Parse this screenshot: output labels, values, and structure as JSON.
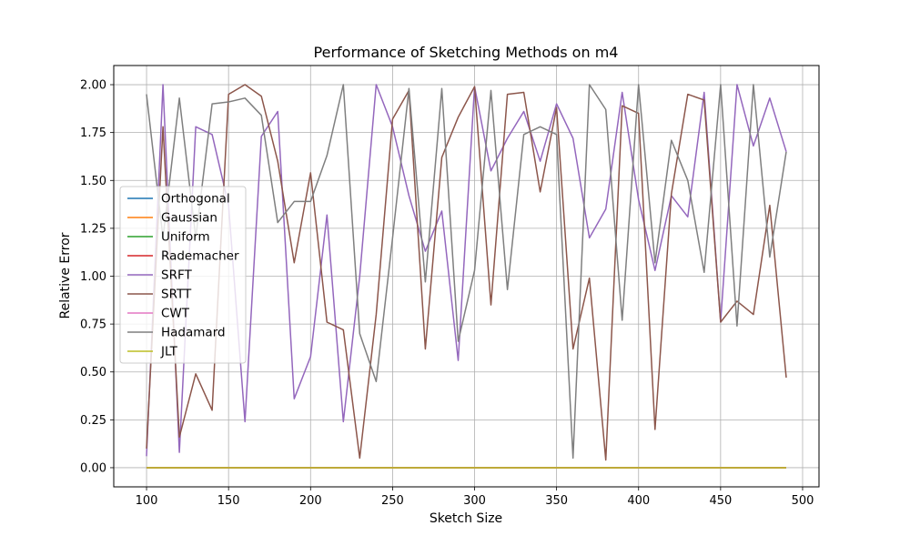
{
  "chart_data": {
    "type": "line",
    "title": "Performance of Sketching Methods on m4",
    "xlabel": "Sketch Size",
    "ylabel": "Relative Error",
    "xlim": [
      80,
      510
    ],
    "ylim": [
      -0.1,
      2.1
    ],
    "xticks": [
      100,
      150,
      200,
      250,
      300,
      350,
      400,
      450,
      500
    ],
    "yticks": [
      0.0,
      0.25,
      0.5,
      0.75,
      1.0,
      1.25,
      1.5,
      1.75,
      2.0
    ],
    "xtick_labels": [
      "100",
      "150",
      "200",
      "250",
      "300",
      "350",
      "400",
      "450",
      "500"
    ],
    "ytick_labels": [
      "0.00",
      "0.25",
      "0.50",
      "0.75",
      "1.00",
      "1.25",
      "1.50",
      "1.75",
      "2.00"
    ],
    "grid": true,
    "legend_position": "center-left",
    "x": [
      100,
      110,
      120,
      130,
      140,
      150,
      160,
      170,
      180,
      190,
      200,
      210,
      220,
      230,
      240,
      250,
      260,
      270,
      280,
      290,
      300,
      310,
      320,
      330,
      340,
      350,
      360,
      370,
      380,
      390,
      400,
      410,
      420,
      430,
      440,
      450,
      460,
      470,
      480,
      490
    ],
    "series": [
      {
        "name": "Orthogonal",
        "color": "#1f77b4",
        "values": [
          0,
          0,
          0,
          0,
          0,
          0,
          0,
          0,
          0,
          0,
          0,
          0,
          0,
          0,
          0,
          0,
          0,
          0,
          0,
          0,
          0,
          0,
          0,
          0,
          0,
          0,
          0,
          0,
          0,
          0,
          0,
          0,
          0,
          0,
          0,
          0,
          0,
          0,
          0,
          0
        ]
      },
      {
        "name": "Gaussian",
        "color": "#ff7f0e",
        "values": [
          0,
          0,
          0,
          0,
          0,
          0,
          0,
          0,
          0,
          0,
          0,
          0,
          0,
          0,
          0,
          0,
          0,
          0,
          0,
          0,
          0,
          0,
          0,
          0,
          0,
          0,
          0,
          0,
          0,
          0,
          0,
          0,
          0,
          0,
          0,
          0,
          0,
          0,
          0,
          0
        ]
      },
      {
        "name": "Uniform",
        "color": "#2ca02c",
        "values": [
          0,
          0,
          0,
          0,
          0,
          0,
          0,
          0,
          0,
          0,
          0,
          0,
          0,
          0,
          0,
          0,
          0,
          0,
          0,
          0,
          0,
          0,
          0,
          0,
          0,
          0,
          0,
          0,
          0,
          0,
          0,
          0,
          0,
          0,
          0,
          0,
          0,
          0,
          0,
          0
        ]
      },
      {
        "name": "Rademacher",
        "color": "#d62728",
        "values": [
          0,
          0,
          0,
          0,
          0,
          0,
          0,
          0,
          0,
          0,
          0,
          0,
          0,
          0,
          0,
          0,
          0,
          0,
          0,
          0,
          0,
          0,
          0,
          0,
          0,
          0,
          0,
          0,
          0,
          0,
          0,
          0,
          0,
          0,
          0,
          0,
          0,
          0,
          0,
          0
        ]
      },
      {
        "name": "SRFT",
        "color": "#9467bd",
        "values": [
          0.06,
          2.0,
          0.08,
          1.78,
          1.74,
          1.37,
          0.24,
          1.73,
          1.86,
          0.36,
          0.58,
          1.32,
          0.24,
          1.0,
          2.0,
          1.78,
          1.42,
          1.13,
          1.34,
          0.56,
          1.99,
          1.55,
          1.72,
          1.86,
          1.6,
          1.9,
          1.72,
          1.2,
          1.35,
          1.96,
          1.4,
          1.03,
          1.42,
          1.31,
          1.96,
          0.76,
          2.0,
          1.68,
          1.93,
          1.65
        ]
      },
      {
        "name": "SRTT",
        "color": "#8c564b",
        "values": [
          0.1,
          1.78,
          0.16,
          0.49,
          0.3,
          1.95,
          2.0,
          1.94,
          1.6,
          1.07,
          1.54,
          0.76,
          0.72,
          0.05,
          0.8,
          1.82,
          1.97,
          0.62,
          1.62,
          1.83,
          1.99,
          0.85,
          1.95,
          1.96,
          1.44,
          1.88,
          0.62,
          0.99,
          0.04,
          1.89,
          1.85,
          0.2,
          1.43,
          1.95,
          1.92,
          0.76,
          0.87,
          0.8,
          1.37,
          0.47
        ]
      },
      {
        "name": "CWT",
        "color": "#e377c2",
        "values": [
          0,
          0,
          0,
          0,
          0,
          0,
          0,
          0,
          0,
          0,
          0,
          0,
          0,
          0,
          0,
          0,
          0,
          0,
          0,
          0,
          0,
          0,
          0,
          0,
          0,
          0,
          0,
          0,
          0,
          0,
          0,
          0,
          0,
          0,
          0,
          0,
          0,
          0,
          0,
          0
        ]
      },
      {
        "name": "Hadamard",
        "color": "#7f7f7f",
        "values": [
          1.95,
          1.2,
          1.93,
          1.2,
          1.9,
          1.91,
          1.93,
          1.84,
          1.28,
          1.39,
          1.39,
          1.63,
          2.0,
          0.7,
          0.45,
          1.2,
          1.98,
          0.97,
          1.98,
          0.66,
          1.03,
          1.97,
          0.93,
          1.74,
          1.78,
          1.74,
          0.05,
          2.0,
          1.87,
          0.77,
          2.0,
          1.07,
          1.71,
          1.5,
          1.02,
          2.0,
          0.74,
          2.0,
          1.1,
          1.65
        ]
      },
      {
        "name": "JLT",
        "color": "#bcbd22",
        "values": [
          0,
          0,
          0,
          0,
          0,
          0,
          0,
          0,
          0,
          0,
          0,
          0,
          0,
          0,
          0,
          0,
          0,
          0,
          0,
          0,
          0,
          0,
          0,
          0,
          0,
          0,
          0,
          0,
          0,
          0,
          0,
          0,
          0,
          0,
          0,
          0,
          0,
          0,
          0,
          0
        ]
      }
    ]
  }
}
